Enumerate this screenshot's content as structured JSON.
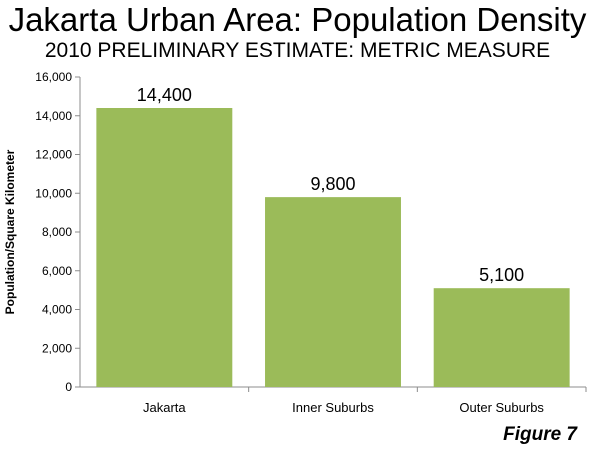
{
  "chart_data": {
    "type": "bar",
    "title": "Jakarta Urban Area: Population Density",
    "subtitle": "2010 PRELIMINARY ESTIMATE: METRIC MEASURE",
    "categories": [
      "Jakarta",
      "Inner Suburbs",
      "Outer Suburbs"
    ],
    "values": [
      14400,
      9800,
      5100
    ],
    "data_labels": [
      "14,400",
      "9,800",
      "5,100"
    ],
    "ylabel": "Population/Square Kilometer",
    "xlabel": "",
    "ylim": [
      0,
      16000
    ],
    "yticks": [
      "0",
      "2,000",
      "4,000",
      "6,000",
      "8,000",
      "10,000",
      "12,000",
      "14,000",
      "16,000"
    ],
    "grid": false,
    "legend": "none",
    "bar_color": "#9bbb59"
  },
  "footer": "Figure 7"
}
